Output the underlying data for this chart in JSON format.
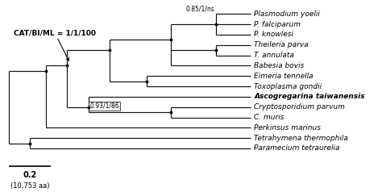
{
  "background_color": "#ffffff",
  "scale_bar_label": "(10,753 aa)",
  "annotation_cat": "CAT/BI/ML = 1/1/100",
  "annotation_093": "0.93/1/86",
  "annotation_085": "0.85/1/ns",
  "taxa": [
    "Plasmodium yoelii",
    "P. falciparum",
    "P. knowlesi",
    "Theileria parva",
    "T. annulata",
    "Babesia bovis",
    "Eimeria tennella",
    "Toxoplasma gondii",
    "Ascogregarina taiwanensis",
    "Cryptosporidium parvum",
    "C. muris",
    "Perkinsus marinus",
    "Tetrahymena thermophila",
    "Paramecium tetraurelia"
  ],
  "taxa_bold": [
    8
  ],
  "line_color": "#111111",
  "node_dot_color": "#000000",
  "taxon_fontsize": 6.5,
  "label_fontsize": 6.0
}
